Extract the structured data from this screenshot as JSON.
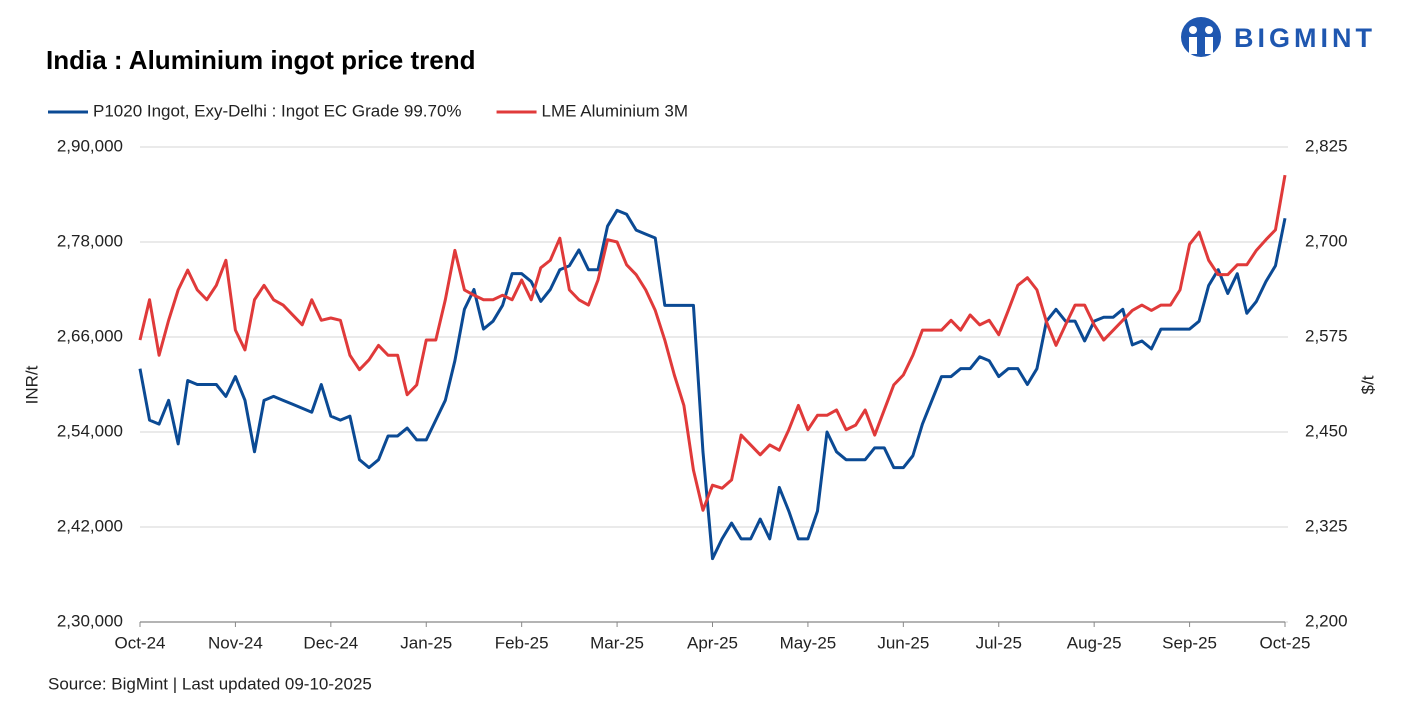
{
  "logo": "BIGMINT",
  "chart_data": {
    "type": "line",
    "title": "India : Aluminium ingot price trend",
    "source": "Source: BigMint | Last updated 09-10-2025",
    "ylabel": "INR/t",
    "y2label": "$/t",
    "grid": true,
    "legend": "top-left",
    "categories": [
      "Oct-24",
      null,
      null,
      null,
      null,
      null,
      null,
      null,
      null,
      null,
      "Nov-24",
      null,
      null,
      null,
      null,
      null,
      null,
      null,
      null,
      null,
      "Dec-24",
      null,
      null,
      null,
      null,
      null,
      null,
      null,
      null,
      null,
      "Jan-25",
      null,
      null,
      null,
      null,
      null,
      null,
      null,
      null,
      null,
      "Feb-25",
      null,
      null,
      null,
      null,
      null,
      null,
      null,
      null,
      null,
      "Mar-25",
      null,
      null,
      null,
      null,
      null,
      null,
      null,
      null,
      null,
      "Apr-25",
      null,
      null,
      null,
      null,
      null,
      null,
      null,
      null,
      null,
      "May-25",
      null,
      null,
      null,
      null,
      null,
      null,
      null,
      null,
      null,
      "Jun-25",
      null,
      null,
      null,
      null,
      null,
      null,
      null,
      null,
      null,
      "Jul-25",
      null,
      null,
      null,
      null,
      null,
      null,
      null,
      null,
      null,
      "Aug-25",
      null,
      null,
      null,
      null,
      null,
      null,
      null,
      null,
      null,
      "Sep-25",
      null,
      null,
      null,
      null,
      null,
      null,
      null,
      null,
      null,
      "Oct-25"
    ],
    "ylim": [
      230000,
      290000
    ],
    "yticks": [
      {
        "value": 230000,
        "label": "2,30,000"
      },
      {
        "value": 242000,
        "label": "2,42,000"
      },
      {
        "value": 254000,
        "label": "2,54,000"
      },
      {
        "value": 266000,
        "label": "2,66,000"
      },
      {
        "value": 278000,
        "label": "2,78,000"
      },
      {
        "value": 290000,
        "label": "2,90,000"
      }
    ],
    "y2lim": [
      2200,
      2825
    ],
    "y2ticks": [
      {
        "value": 2200,
        "label": "2,200"
      },
      {
        "value": 2325,
        "label": "2,325"
      },
      {
        "value": 2450,
        "label": "2,450"
      },
      {
        "value": 2575,
        "label": "2,575"
      },
      {
        "value": 2700,
        "label": "2,700"
      },
      {
        "value": 2825,
        "label": "2,825"
      }
    ],
    "series": [
      {
        "name": "P1020 Ingot, Exy-Delhi : Ingot EC Grade 99.70%",
        "color": "#0b4a94",
        "values": [
          262000,
          255500,
          255000,
          258000,
          252500,
          260500,
          260000,
          260000,
          260000,
          258500,
          261000,
          258000,
          251500,
          258000,
          258500,
          258000,
          257500,
          257000,
          256500,
          260000,
          256000,
          255500,
          256000,
          250500,
          249500,
          250500,
          253500,
          253500,
          254500,
          253000,
          253000,
          255500,
          258000,
          263000,
          269500,
          272000,
          267000,
          268000,
          270000,
          274000,
          274000,
          273000,
          270500,
          272000,
          274500,
          275000,
          277000,
          274500,
          274500,
          280000,
          282000,
          281500,
          279500,
          279000,
          278500,
          270000,
          270000,
          270000,
          270000,
          251500,
          238000,
          240500,
          242500,
          240500,
          240500,
          243000,
          240500,
          247000,
          244000,
          240500,
          240500,
          244000,
          254000,
          251500,
          250500,
          250500,
          250500,
          252000,
          252000,
          249500,
          249500,
          251000,
          255000,
          258000,
          261000,
          261000,
          262000,
          262000,
          263500,
          263000,
          261000,
          262000,
          262000,
          260000,
          262000,
          268000,
          269500,
          268000,
          268000,
          265500,
          268000,
          268500,
          268500,
          269500,
          265000,
          265500,
          264500,
          267000,
          267000,
          267000,
          267000,
          268000,
          272500,
          274500,
          271500,
          274000,
          269000,
          270500,
          273000,
          275000,
          281000
        ]
      },
      {
        "name": "LME Aluminium 3M",
        "color": "#e03a3a",
        "axis": "y2",
        "values": [
          2571,
          2624,
          2551,
          2597,
          2637,
          2663,
          2637,
          2624,
          2643,
          2676,
          2584,
          2558,
          2624,
          2643,
          2624,
          2617,
          2604,
          2591,
          2624,
          2597,
          2600,
          2597,
          2551,
          2532,
          2545,
          2564,
          2551,
          2551,
          2499,
          2512,
          2571,
          2571,
          2624,
          2689,
          2637,
          2630,
          2624,
          2624,
          2630,
          2624,
          2650,
          2624,
          2666,
          2676,
          2705,
          2637,
          2624,
          2617,
          2650,
          2703,
          2700,
          2670,
          2657,
          2637,
          2610,
          2571,
          2525,
          2485,
          2400,
          2347,
          2380,
          2376,
          2387,
          2446,
          2433,
          2420,
          2433,
          2426,
          2453,
          2485,
          2453,
          2472,
          2472,
          2479,
          2453,
          2459,
          2479,
          2446,
          2479,
          2512,
          2525,
          2551,
          2584,
          2584,
          2584,
          2597,
          2584,
          2604,
          2591,
          2597,
          2578,
          2610,
          2643,
          2653,
          2637,
          2595,
          2564,
          2591,
          2617,
          2617,
          2591,
          2571,
          2584,
          2597,
          2610,
          2617,
          2610,
          2617,
          2617,
          2637,
          2697,
          2713,
          2676,
          2657,
          2657,
          2670,
          2670,
          2689,
          2703,
          2716,
          2788
        ]
      }
    ]
  }
}
